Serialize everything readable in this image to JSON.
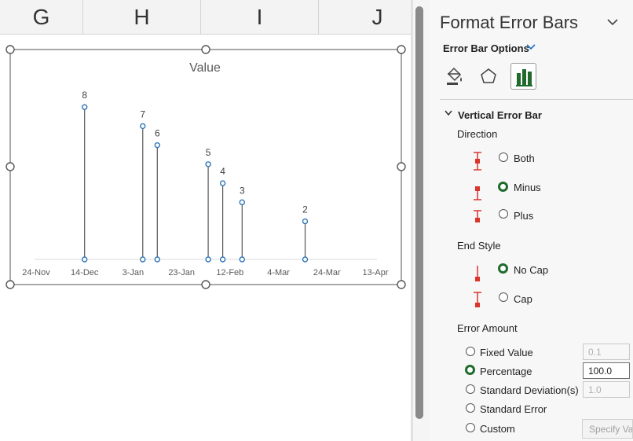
{
  "spreadsheet": {
    "columns": [
      "G",
      "H",
      "I",
      "J"
    ]
  },
  "chart_data": {
    "type": "scatter",
    "title": "Value",
    "x": [
      "2024-12-14",
      "2025-01-07",
      "2025-01-13",
      "2025-02-03",
      "2025-02-09",
      "2025-02-17",
      "2025-03-15"
    ],
    "values": [
      8,
      7,
      6,
      5,
      4,
      3,
      2
    ],
    "data_labels": [
      "8",
      "7",
      "6",
      "5",
      "4",
      "3",
      "2"
    ],
    "x_tick_labels": [
      "24-Nov",
      "14-Dec",
      "3-Jan",
      "23-Jan",
      "12-Feb",
      "4-Mar",
      "24-Mar",
      "13-Apr"
    ],
    "x_ticks": [
      "2024-11-24",
      "2024-12-14",
      "2025-01-03",
      "2025-01-23",
      "2025-02-12",
      "2025-03-04",
      "2025-03-24",
      "2025-04-13"
    ],
    "xlim": [
      "2024-11-24",
      "2025-04-13"
    ],
    "ylim": [
      0,
      9
    ],
    "error_bars": {
      "direction": "minus",
      "end_style": "no-cap",
      "amount": "percentage",
      "percent": 100
    },
    "grid": false,
    "colors": {
      "marker": "#2e75b6",
      "error_bar": "#555555",
      "axis": "#d9d9d9"
    }
  },
  "pane": {
    "title": "Format Error Bars",
    "options_label": "Error Bar Options",
    "tabs": [
      {
        "icon": "fill-line-icon"
      },
      {
        "icon": "effects-icon"
      },
      {
        "icon": "series-options-icon",
        "selected": true
      }
    ],
    "section_title": "Vertical Error Bar",
    "direction": {
      "label": "Direction",
      "options": [
        {
          "label": "Both",
          "selected": false
        },
        {
          "label": "Minus",
          "selected": true
        },
        {
          "label": "Plus",
          "selected": false
        }
      ]
    },
    "end_style": {
      "label": "End Style",
      "options": [
        {
          "label": "No Cap",
          "selected": true
        },
        {
          "label": "Cap",
          "selected": false
        }
      ]
    },
    "error_amount": {
      "label": "Error Amount",
      "options": [
        {
          "label": "Fixed Value",
          "selected": false,
          "value": "0.1"
        },
        {
          "label": "Percentage",
          "selected": true,
          "value": "100.0"
        },
        {
          "label": "Standard Deviation(s)",
          "selected": false,
          "value": "1.0"
        },
        {
          "label": "Standard Error",
          "selected": false
        },
        {
          "label": "Custom",
          "selected": false
        }
      ],
      "specify_value_label": "Specify Va"
    },
    "accent_color": "#1f6b2c",
    "icon_red": "#d9352b"
  }
}
